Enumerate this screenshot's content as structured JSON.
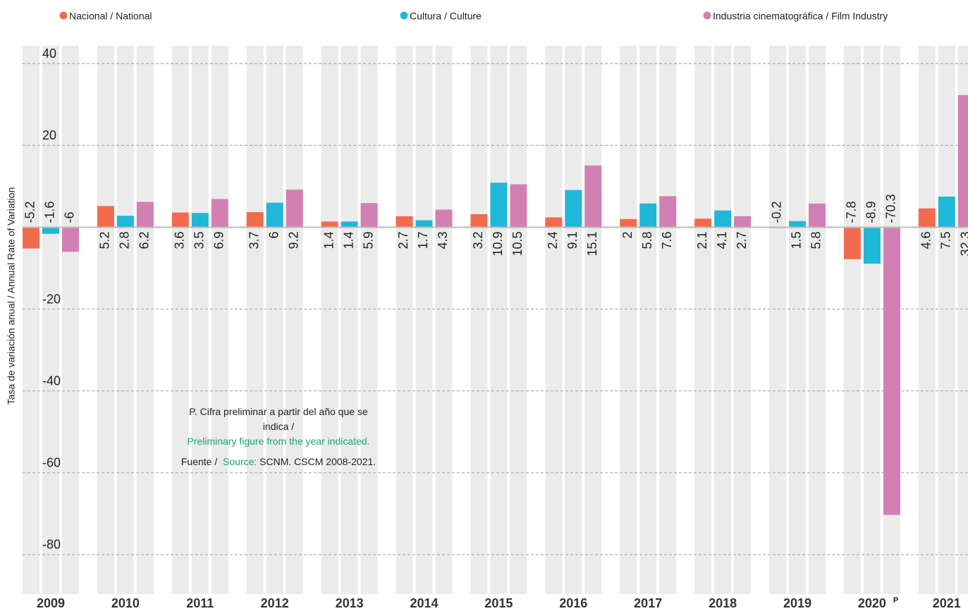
{
  "chart_data": {
    "type": "bar",
    "y_axis_label": "Tasa de variación anual /  Annual Rate of Variation",
    "categories": [
      "2009",
      "2010",
      "2011",
      "2012",
      "2013",
      "2014",
      "2015",
      "2016",
      "2017",
      "2018",
      "2019",
      "2020",
      "2021"
    ],
    "series": [
      {
        "name": "Nacional / National",
        "color": "#f26b4f",
        "values": [
          -5.2,
          5.2,
          3.6,
          3.7,
          1.4,
          2.7,
          3.2,
          2.4,
          2,
          2.1,
          -0.2,
          -7.8,
          4.6
        ]
      },
      {
        "name": "Cultura / Culture",
        "color": "#1fb8d8",
        "values": [
          -1.6,
          2.8,
          3.5,
          6,
          1.4,
          1.7,
          10.9,
          9.1,
          5.8,
          4.1,
          1.5,
          -8.9,
          7.5
        ]
      },
      {
        "name": "Industria cinematográfica / Film Industry",
        "color": "#d280b4",
        "values": [
          -6,
          6.2,
          6.9,
          9.2,
          5.9,
          4.3,
          10.5,
          15.1,
          7.6,
          2.7,
          5.8,
          -70.3,
          32.3
        ]
      }
    ],
    "ylim": [
      -90,
      44
    ],
    "yticks": [
      40,
      20,
      -20,
      -40,
      -60,
      -80
    ],
    "grid": true,
    "preliminary_marker": "P",
    "note": {
      "line1": "P. Cifra preliminar a partir del año que se indica /",
      "line2": "Preliminary figure from the year indicated.",
      "source_prefix": "Fuente /",
      "source_word": "Source:",
      "source_text": "SCNM. CSCM 2008-2021."
    }
  }
}
